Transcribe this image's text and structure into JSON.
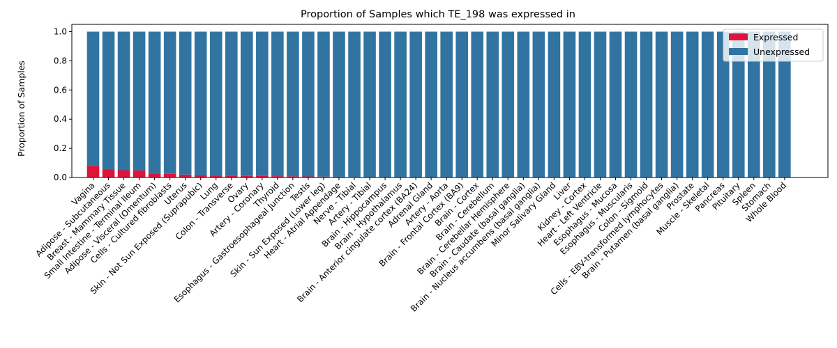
{
  "chart_data": {
    "type": "bar",
    "stacked": true,
    "title": "Proportion of Samples which TE_198 was expressed in",
    "xlabel": "",
    "ylabel": "Proportion of Samples",
    "ylim": [
      0,
      1.05
    ],
    "yticks": [
      "0.0",
      "0.2",
      "0.4",
      "0.6",
      "0.8",
      "1.0"
    ],
    "grid": false,
    "legend_position": "top-right",
    "categories": [
      "Vagina",
      "Adipose - Subcutaneous",
      "Breast - Mammary Tissue",
      "Small Intestine - Terminal Ileum",
      "Adipose - Visceral (Omentum)",
      "Cells - Cultured fibroblasts",
      "Uterus",
      "Skin - Not Sun Exposed (Suprapubic)",
      "Lung",
      "Colon - Transverse",
      "Ovary",
      "Artery - Coronary",
      "Thyroid",
      "Esophagus - Gastroesophageal Junction",
      "Testis",
      "Skin - Sun Exposed (Lower leg)",
      "Heart - Atrial Appendage",
      "Nerve - Tibial",
      "Artery - Tibial",
      "Brain - Hippocampus",
      "Brain - Hypothalamus",
      "Brain - Anterior cingulate cortex (BA24)",
      "Adrenal Gland",
      "Artery - Aorta",
      "Brain - Frontal Cortex (BA9)",
      "Brain - Cortex",
      "Brain - Cerebellum",
      "Brain - Cerebellar Hemisphere",
      "Brain - Caudate (basal ganglia)",
      "Brain - Nucleus accumbens (basal ganglia)",
      "Minor Salivary Gland",
      "Liver",
      "Kidney - Cortex",
      "Heart - Left Ventricle",
      "Esophagus - Mucosa",
      "Esophagus - Muscularis",
      "Colon - Sigmoid",
      "Cells - EBV-transformed lymphocytes",
      "Brain - Putamen (basal ganglia)",
      "Prostate",
      "Muscle - Skeletal",
      "Pancreas",
      "Pituitary",
      "Spleen",
      "Stomach",
      "Whole Blood"
    ],
    "series": [
      {
        "name": "Expressed",
        "color": "#dc143c",
        "values": [
          0.08,
          0.055,
          0.05,
          0.048,
          0.028,
          0.025,
          0.02,
          0.016,
          0.014,
          0.013,
          0.011,
          0.01,
          0.009,
          0.008,
          0.007,
          0.006,
          0.005,
          0.004,
          0,
          0,
          0,
          0,
          0,
          0,
          0,
          0,
          0,
          0,
          0,
          0,
          0,
          0,
          0,
          0,
          0,
          0,
          0,
          0,
          0,
          0,
          0,
          0,
          0,
          0,
          0,
          0
        ]
      },
      {
        "name": "Unexpressed",
        "color": "#3274a1",
        "values": [
          0.92,
          0.945,
          0.95,
          0.952,
          0.972,
          0.975,
          0.98,
          0.984,
          0.986,
          0.987,
          0.989,
          0.99,
          0.991,
          0.992,
          0.993,
          0.994,
          0.995,
          0.996,
          1,
          1,
          1,
          1,
          1,
          1,
          1,
          1,
          1,
          1,
          1,
          1,
          1,
          1,
          1,
          1,
          1,
          1,
          1,
          1,
          1,
          1,
          1,
          1,
          1,
          1,
          1,
          1
        ]
      }
    ]
  }
}
